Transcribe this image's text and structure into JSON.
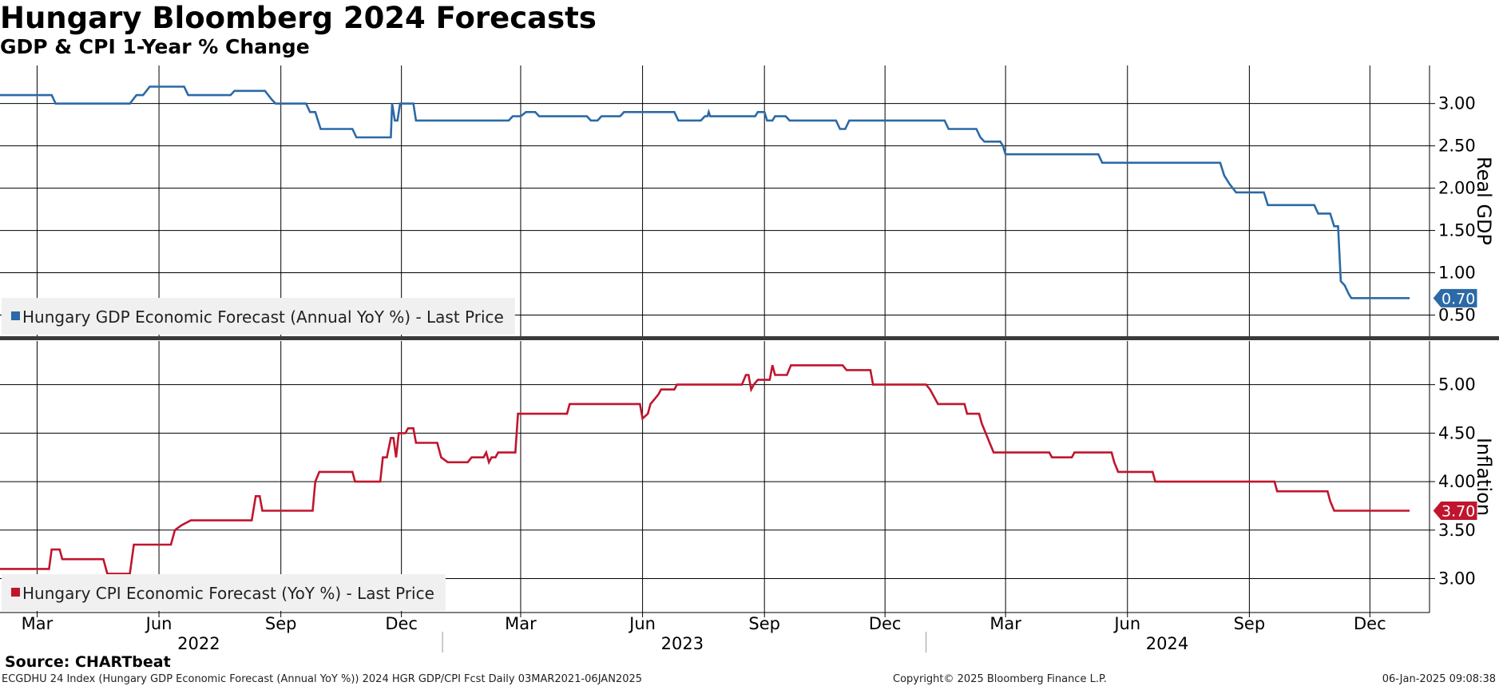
{
  "title": "Hungary Bloomberg 2024 Forecasts",
  "subtitle": "GDP & CPI 1-Year % Change",
  "source": "Source: CHARTbeat",
  "footer": {
    "left": "ECGDHU 24 Index (Hungary GDP Economic Forecast (Annual YoY %)) 2024 HGR GDP/CPI Fcst  Daily 03MAR2021-06JAN2025",
    "center": "Copyright© 2025 Bloomberg Finance L.P.",
    "right": "06-Jan-2025 09:08:38"
  },
  "colors": {
    "gdp": "#2b6aa6",
    "cpi": "#c0152d",
    "grid": "#000000",
    "legend_bg": "#f0f0f0",
    "separator": "#3a3a3a"
  },
  "chart_data": {
    "type": "line",
    "x_axis": {
      "range": [
        "2022-02-01",
        "2025-01-15"
      ],
      "month_ticks": [
        {
          "date": "2022-03-01",
          "label": "Mar"
        },
        {
          "date": "2022-06-01",
          "label": "Jun"
        },
        {
          "date": "2022-09-01",
          "label": "Sep"
        },
        {
          "date": "2022-12-01",
          "label": "Dec"
        },
        {
          "date": "2023-03-01",
          "label": "Mar"
        },
        {
          "date": "2023-06-01",
          "label": "Jun"
        },
        {
          "date": "2023-09-01",
          "label": "Sep"
        },
        {
          "date": "2023-12-01",
          "label": "Dec"
        },
        {
          "date": "2024-03-01",
          "label": "Mar"
        },
        {
          "date": "2024-06-01",
          "label": "Jun"
        },
        {
          "date": "2024-09-01",
          "label": "Sep"
        },
        {
          "date": "2024-12-01",
          "label": "Dec"
        }
      ],
      "year_labels": [
        {
          "label": "2022",
          "date": "2022-07-01"
        },
        {
          "label": "2023",
          "date": "2023-07-01"
        },
        {
          "label": "2024",
          "date": "2024-07-01"
        }
      ],
      "year_boundaries": [
        "2023-01-01",
        "2024-01-01"
      ]
    },
    "panels": [
      {
        "id": "gdp",
        "axis_label": "Real GDP",
        "ylim": [
          0.25,
          3.45
        ],
        "yticks": [
          "0.50",
          "1.00",
          "1.50",
          "2.00",
          "2.50",
          "3.00"
        ],
        "last_value": "0.70",
        "series": {
          "name": "Hungary GDP Economic Forecast (Annual YoY %) - Last Price",
          "points": [
            [
              "2022-02-01",
              3.1
            ],
            [
              "2022-03-12",
              3.1
            ],
            [
              "2022-03-15",
              3.0
            ],
            [
              "2022-05-10",
              3.0
            ],
            [
              "2022-05-15",
              3.1
            ],
            [
              "2022-05-20",
              3.1
            ],
            [
              "2022-05-25",
              3.2
            ],
            [
              "2022-06-20",
              3.2
            ],
            [
              "2022-06-23",
              3.1
            ],
            [
              "2022-07-25",
              3.1
            ],
            [
              "2022-07-28",
              3.15
            ],
            [
              "2022-08-20",
              3.15
            ],
            [
              "2022-08-25",
              3.05
            ],
            [
              "2022-08-28",
              3.0
            ],
            [
              "2022-09-20",
              3.0
            ],
            [
              "2022-09-23",
              2.9
            ],
            [
              "2022-09-27",
              2.9
            ],
            [
              "2022-10-01",
              2.7
            ],
            [
              "2022-10-25",
              2.7
            ],
            [
              "2022-10-28",
              2.6
            ],
            [
              "2022-11-23",
              2.6
            ],
            [
              "2022-11-24",
              3.0
            ],
            [
              "2022-11-26",
              2.8
            ],
            [
              "2022-11-28",
              2.8
            ],
            [
              "2022-11-30",
              3.0
            ],
            [
              "2022-12-10",
              3.0
            ],
            [
              "2022-12-12",
              2.8
            ],
            [
              "2023-02-20",
              2.8
            ],
            [
              "2023-02-23",
              2.85
            ],
            [
              "2023-03-01",
              2.85
            ],
            [
              "2023-03-05",
              2.9
            ],
            [
              "2023-03-12",
              2.9
            ],
            [
              "2023-03-15",
              2.85
            ],
            [
              "2023-04-20",
              2.85
            ],
            [
              "2023-04-23",
              2.8
            ],
            [
              "2023-04-28",
              2.8
            ],
            [
              "2023-05-01",
              2.85
            ],
            [
              "2023-05-15",
              2.85
            ],
            [
              "2023-05-18",
              2.9
            ],
            [
              "2023-06-25",
              2.9
            ],
            [
              "2023-06-28",
              2.8
            ],
            [
              "2023-07-15",
              2.8
            ],
            [
              "2023-07-18",
              2.85
            ],
            [
              "2023-07-20",
              2.85
            ],
            [
              "2023-07-21",
              2.9
            ],
            [
              "2023-07-22",
              2.85
            ],
            [
              "2023-08-25",
              2.85
            ],
            [
              "2023-08-27",
              2.9
            ],
            [
              "2023-09-01",
              2.9
            ],
            [
              "2023-09-03",
              2.8
            ],
            [
              "2023-09-07",
              2.8
            ],
            [
              "2023-09-09",
              2.85
            ],
            [
              "2023-09-17",
              2.85
            ],
            [
              "2023-09-20",
              2.8
            ],
            [
              "2023-10-25",
              2.8
            ],
            [
              "2023-10-28",
              2.7
            ],
            [
              "2023-11-01",
              2.7
            ],
            [
              "2023-11-04",
              2.8
            ],
            [
              "2024-01-15",
              2.8
            ],
            [
              "2024-01-18",
              2.7
            ],
            [
              "2024-02-08",
              2.7
            ],
            [
              "2024-02-11",
              2.6
            ],
            [
              "2024-02-14",
              2.55
            ],
            [
              "2024-02-26",
              2.55
            ],
            [
              "2024-02-28",
              2.5
            ],
            [
              "2024-03-01",
              2.4
            ],
            [
              "2024-05-10",
              2.4
            ],
            [
              "2024-05-13",
              2.3
            ],
            [
              "2024-08-10",
              2.3
            ],
            [
              "2024-08-13",
              2.15
            ],
            [
              "2024-08-17",
              2.05
            ],
            [
              "2024-08-22",
              1.95
            ],
            [
              "2024-09-12",
              1.95
            ],
            [
              "2024-09-15",
              1.8
            ],
            [
              "2024-10-20",
              1.8
            ],
            [
              "2024-10-23",
              1.7
            ],
            [
              "2024-11-01",
              1.7
            ],
            [
              "2024-11-04",
              1.55
            ],
            [
              "2024-11-07",
              1.55
            ],
            [
              "2024-11-09",
              0.9
            ],
            [
              "2024-11-12",
              0.85
            ],
            [
              "2024-11-15",
              0.75
            ],
            [
              "2024-11-17",
              0.7
            ],
            [
              "2024-12-31",
              0.7
            ]
          ]
        }
      },
      {
        "id": "cpi",
        "axis_label": "Inflation",
        "ylim": [
          2.65,
          5.45
        ],
        "yticks": [
          "3.00",
          "3.50",
          "4.00",
          "4.50",
          "5.00"
        ],
        "last_value": "3.70",
        "series": {
          "name": "Hungary CPI Economic Forecast (YoY %) - Last Price",
          "points": [
            [
              "2022-02-01",
              3.1
            ],
            [
              "2022-03-10",
              3.1
            ],
            [
              "2022-03-12",
              3.3
            ],
            [
              "2022-03-18",
              3.3
            ],
            [
              "2022-03-20",
              3.2
            ],
            [
              "2022-04-20",
              3.2
            ],
            [
              "2022-04-23",
              3.05
            ],
            [
              "2022-05-10",
              3.05
            ],
            [
              "2022-05-13",
              3.35
            ],
            [
              "2022-06-10",
              3.35
            ],
            [
              "2022-06-13",
              3.5
            ],
            [
              "2022-06-18",
              3.55
            ],
            [
              "2022-06-25",
              3.6
            ],
            [
              "2022-08-10",
              3.6
            ],
            [
              "2022-08-13",
              3.85
            ],
            [
              "2022-08-16",
              3.85
            ],
            [
              "2022-08-18",
              3.7
            ],
            [
              "2022-09-25",
              3.7
            ],
            [
              "2022-09-27",
              4.0
            ],
            [
              "2022-09-30",
              4.1
            ],
            [
              "2022-10-25",
              4.1
            ],
            [
              "2022-10-27",
              4.0
            ],
            [
              "2022-11-15",
              4.0
            ],
            [
              "2022-11-17",
              4.25
            ],
            [
              "2022-11-20",
              4.25
            ],
            [
              "2022-11-23",
              4.45
            ],
            [
              "2022-11-25",
              4.45
            ],
            [
              "2022-11-27",
              4.25
            ],
            [
              "2022-11-29",
              4.5
            ],
            [
              "2022-12-04",
              4.5
            ],
            [
              "2022-12-06",
              4.55
            ],
            [
              "2022-12-10",
              4.55
            ],
            [
              "2022-12-12",
              4.4
            ],
            [
              "2022-12-28",
              4.4
            ],
            [
              "2022-12-31",
              4.25
            ],
            [
              "2023-01-05",
              4.2
            ],
            [
              "2023-01-20",
              4.2
            ],
            [
              "2023-01-23",
              4.25
            ],
            [
              "2023-02-01",
              4.25
            ],
            [
              "2023-02-03",
              4.3
            ],
            [
              "2023-02-05",
              4.2
            ],
            [
              "2023-02-07",
              4.25
            ],
            [
              "2023-02-10",
              4.25
            ],
            [
              "2023-02-12",
              4.3
            ],
            [
              "2023-02-25",
              4.3
            ],
            [
              "2023-02-27",
              4.7
            ],
            [
              "2023-04-05",
              4.7
            ],
            [
              "2023-04-07",
              4.8
            ],
            [
              "2023-05-30",
              4.8
            ],
            [
              "2023-06-01",
              4.65
            ],
            [
              "2023-06-05",
              4.7
            ],
            [
              "2023-06-07",
              4.8
            ],
            [
              "2023-06-10",
              4.85
            ],
            [
              "2023-06-13",
              4.9
            ],
            [
              "2023-06-15",
              4.95
            ],
            [
              "2023-06-25",
              4.95
            ],
            [
              "2023-06-27",
              5.0
            ],
            [
              "2023-08-15",
              5.0
            ],
            [
              "2023-08-18",
              5.1
            ],
            [
              "2023-08-20",
              5.1
            ],
            [
              "2023-08-22",
              4.95
            ],
            [
              "2023-08-24",
              5.0
            ],
            [
              "2023-08-27",
              5.05
            ],
            [
              "2023-09-05",
              5.05
            ],
            [
              "2023-09-07",
              5.2
            ],
            [
              "2023-09-09",
              5.1
            ],
            [
              "2023-09-18",
              5.1
            ],
            [
              "2023-09-21",
              5.2
            ],
            [
              "2023-10-30",
              5.2
            ],
            [
              "2023-11-02",
              5.15
            ],
            [
              "2023-11-20",
              5.15
            ],
            [
              "2023-11-22",
              5.0
            ],
            [
              "2024-01-01",
              5.0
            ],
            [
              "2024-01-04",
              4.95
            ],
            [
              "2024-01-06",
              4.9
            ],
            [
              "2024-01-10",
              4.8
            ],
            [
              "2024-01-30",
              4.8
            ],
            [
              "2024-02-01",
              4.7
            ],
            [
              "2024-02-10",
              4.7
            ],
            [
              "2024-02-12",
              4.6
            ],
            [
              "2024-02-15",
              4.5
            ],
            [
              "2024-02-18",
              4.4
            ],
            [
              "2024-02-21",
              4.3
            ],
            [
              "2024-04-03",
              4.3
            ],
            [
              "2024-04-05",
              4.25
            ],
            [
              "2024-04-20",
              4.25
            ],
            [
              "2024-04-22",
              4.3
            ],
            [
              "2024-05-20",
              4.3
            ],
            [
              "2024-05-22",
              4.2
            ],
            [
              "2024-05-25",
              4.1
            ],
            [
              "2024-06-20",
              4.1
            ],
            [
              "2024-06-22",
              4.0
            ],
            [
              "2024-09-20",
              4.0
            ],
            [
              "2024-09-22",
              3.9
            ],
            [
              "2024-10-30",
              3.9
            ],
            [
              "2024-11-01",
              3.8
            ],
            [
              "2024-11-04",
              3.7
            ],
            [
              "2024-12-31",
              3.7
            ]
          ]
        }
      }
    ]
  }
}
